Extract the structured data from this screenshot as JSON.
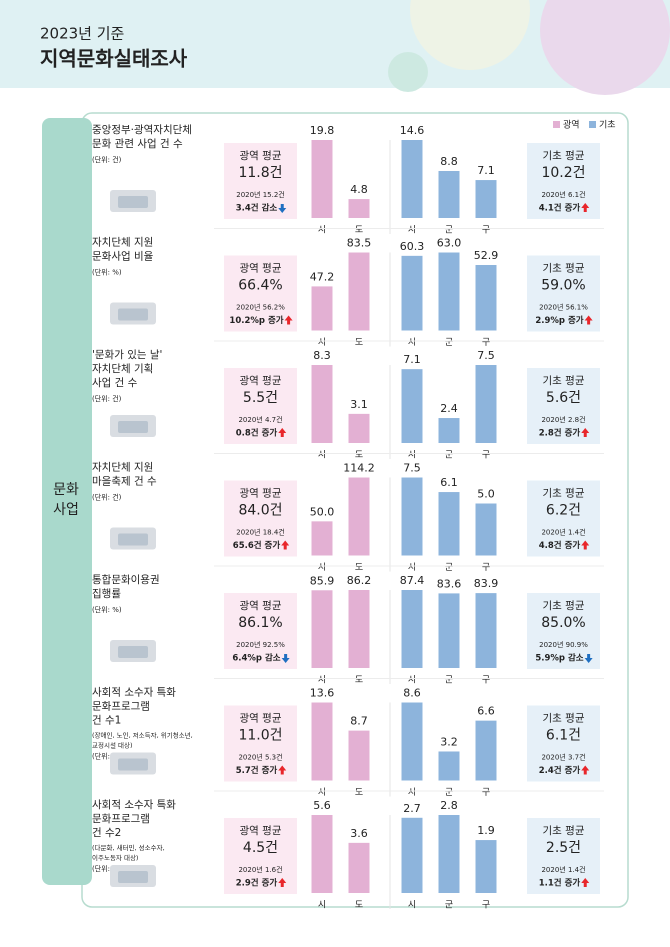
{
  "header": {
    "subtitle": "2023년 기준",
    "title": "지역문화실태조사"
  },
  "side_label": [
    "문화",
    "사업"
  ],
  "chart_data": [
    {
      "type": "bar",
      "title": [
        "중앙정부·광역자치단체",
        "문화 관련 사업 건 수"
      ],
      "unit": "(단위: 건)",
      "series": [
        {
          "name": "광역",
          "color": "#e3b0d3",
          "categories": [
            "시",
            "도"
          ],
          "values": [
            19.8,
            4.8
          ]
        },
        {
          "name": "기초",
          "color": "#8db4dc",
          "categories": [
            "시",
            "군",
            "구"
          ],
          "values": [
            14.6,
            8.8,
            7.1
          ]
        }
      ],
      "summaries": [
        {
          "label": "광역 평균",
          "value": "11.8건",
          "previous": "2020년 15.2건",
          "change": "3.4건 감소",
          "direction": "down"
        },
        {
          "label": "기초 평균",
          "value": "10.2건",
          "previous": "2020년 6.1건",
          "change": "4.1건 증가",
          "direction": "up"
        }
      ]
    },
    {
      "type": "bar",
      "title": [
        "자치단체 지원",
        "문화사업 비율"
      ],
      "unit": "(단위: %)",
      "series": [
        {
          "name": "광역",
          "color": "#e3b0d3",
          "categories": [
            "시",
            "도"
          ],
          "values": [
            47.2,
            83.5
          ]
        },
        {
          "name": "기초",
          "color": "#8db4dc",
          "categories": [
            "시",
            "군",
            "구"
          ],
          "values": [
            60.3,
            63.0,
            52.9
          ],
          "value_labels": [
            "60.3",
            "63.0",
            "52.9"
          ]
        }
      ],
      "summaries": [
        {
          "label": "광역 평균",
          "value": "66.4%",
          "previous": "2020년 56.2%",
          "change": "10.2%p 증가",
          "direction": "up"
        },
        {
          "label": "기초 평균",
          "value": "59.0%",
          "previous": "2020년 56.1%",
          "change": "2.9%p 증가",
          "direction": "up"
        }
      ]
    },
    {
      "type": "bar",
      "title": [
        "'문화가 있는 날'",
        "자치단체 기획",
        "사업 건 수"
      ],
      "unit": "(단위: 건)",
      "series": [
        {
          "name": "광역",
          "color": "#e3b0d3",
          "categories": [
            "시",
            "도"
          ],
          "values": [
            8.3,
            3.1
          ]
        },
        {
          "name": "기초",
          "color": "#8db4dc",
          "categories": [
            "시",
            "군",
            "구"
          ],
          "values": [
            7.1,
            2.4,
            7.5
          ]
        }
      ],
      "summaries": [
        {
          "label": "광역 평균",
          "value": "5.5건",
          "previous": "2020년 4.7건",
          "change": "0.8건 증가",
          "direction": "up"
        },
        {
          "label": "기초 평균",
          "value": "5.6건",
          "previous": "2020년 2.8건",
          "change": "2.8건 증가",
          "direction": "up"
        }
      ]
    },
    {
      "type": "bar",
      "title": [
        "자치단체 지원",
        "마을축제 건 수"
      ],
      "unit": "(단위: 건)",
      "series": [
        {
          "name": "광역",
          "color": "#e3b0d3",
          "categories": [
            "시",
            "도"
          ],
          "values": [
            50.0,
            114.2
          ],
          "value_labels": [
            "50.0",
            "114.2"
          ]
        },
        {
          "name": "기초",
          "color": "#8db4dc",
          "categories": [
            "시",
            "군",
            "구"
          ],
          "values": [
            7.5,
            6.1,
            5.0
          ],
          "value_labels": [
            "7.5",
            "6.1",
            "5.0"
          ]
        }
      ],
      "summaries": [
        {
          "label": "광역 평균",
          "value": "84.0건",
          "previous": "2020년 18.4건",
          "change": "65.6건 증가",
          "direction": "up"
        },
        {
          "label": "기초 평균",
          "value": "6.2건",
          "previous": "2020년 1.4건",
          "change": "4.8건 증가",
          "direction": "up"
        }
      ]
    },
    {
      "type": "bar",
      "title": [
        "통합문화이용권",
        "집행률"
      ],
      "unit": "(단위: %)",
      "series": [
        {
          "name": "광역",
          "color": "#e3b0d3",
          "categories": [
            "시",
            "도"
          ],
          "values": [
            85.9,
            86.2
          ]
        },
        {
          "name": "기초",
          "color": "#8db4dc",
          "categories": [
            "시",
            "군",
            "구"
          ],
          "values": [
            87.4,
            83.6,
            83.9
          ]
        }
      ],
      "summaries": [
        {
          "label": "광역 평균",
          "value": "86.1%",
          "previous": "2020년 92.5%",
          "change": "6.4%p 감소",
          "direction": "down"
        },
        {
          "label": "기초 평균",
          "value": "85.0%",
          "previous": "2020년 90.9%",
          "change": "5.9%p 감소",
          "direction": "down"
        }
      ]
    },
    {
      "type": "bar",
      "title": [
        "사회적 소수자 특화",
        "문화프로그램",
        "건 수1"
      ],
      "note": [
        "(장애인, 노인, 저소득자, 위기청소년,",
        "교정시설 대상)"
      ],
      "unit": "(단위: 건)",
      "series": [
        {
          "name": "광역",
          "color": "#e3b0d3",
          "categories": [
            "시",
            "도"
          ],
          "values": [
            13.6,
            8.7
          ]
        },
        {
          "name": "기초",
          "color": "#8db4dc",
          "categories": [
            "시",
            "군",
            "구"
          ],
          "values": [
            8.6,
            3.2,
            6.6
          ]
        }
      ],
      "summaries": [
        {
          "label": "광역 평균",
          "value": "11.0건",
          "previous": "2020년 5.3건",
          "change": "5.7건 증가",
          "direction": "up"
        },
        {
          "label": "기초 평균",
          "value": "6.1건",
          "previous": "2020년 3.7건",
          "change": "2.4건 증가",
          "direction": "up"
        }
      ]
    },
    {
      "type": "bar",
      "title": [
        "사회적 소수자 특화",
        "문화프로그램",
        "건 수2"
      ],
      "note": [
        "(다문화, 새터민, 성소수자,",
        "이주노동자 대상)"
      ],
      "unit": "(단위: 건)",
      "series": [
        {
          "name": "광역",
          "color": "#e3b0d3",
          "categories": [
            "시",
            "도"
          ],
          "values": [
            5.6,
            3.6
          ]
        },
        {
          "name": "기초",
          "color": "#8db4dc",
          "categories": [
            "시",
            "군",
            "구"
          ],
          "values": [
            2.7,
            2.8,
            1.9
          ]
        }
      ],
      "summaries": [
        {
          "label": "광역 평균",
          "value": "4.5건",
          "previous": "2020년 1.6건",
          "change": "2.9건 증가",
          "direction": "up"
        },
        {
          "label": "기초 평균",
          "value": "2.5건",
          "previous": "2020년 1.4건",
          "change": "1.1건 증가",
          "direction": "up"
        }
      ]
    }
  ]
}
